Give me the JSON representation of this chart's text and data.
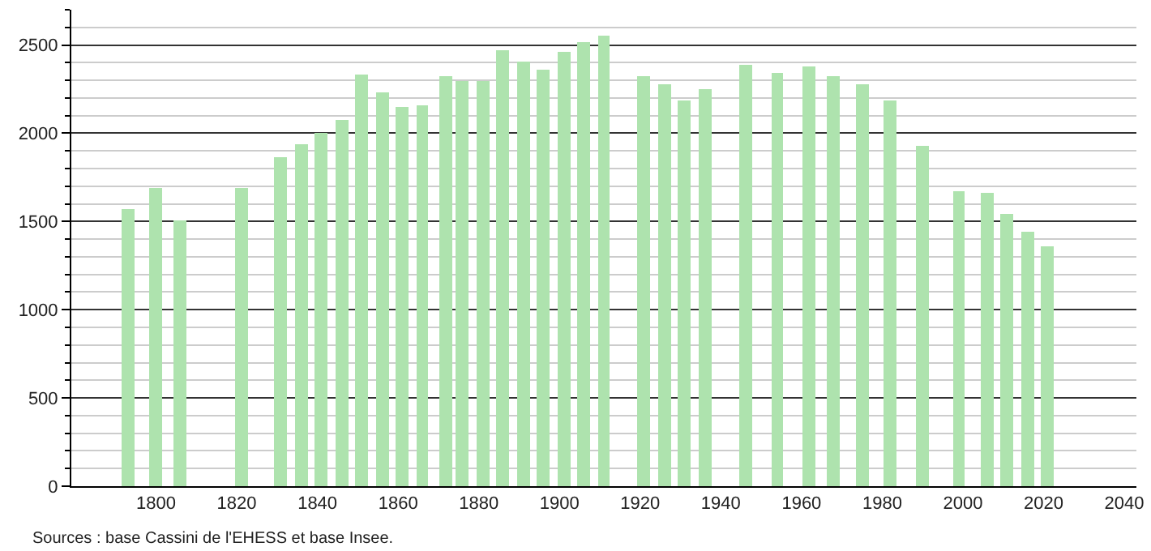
{
  "chart_data": {
    "type": "bar",
    "x": [
      1793,
      1800,
      1806,
      1821,
      1831,
      1836,
      1841,
      1846,
      1851,
      1856,
      1861,
      1866,
      1872,
      1876,
      1881,
      1886,
      1891,
      1896,
      1901,
      1906,
      1911,
      1921,
      1926,
      1931,
      1936,
      1946,
      1954,
      1962,
      1968,
      1975,
      1982,
      1990,
      1999,
      2006,
      2011,
      2016,
      2021
    ],
    "values": [
      1570,
      1690,
      1510,
      1690,
      1860,
      1940,
      2000,
      2080,
      2330,
      2230,
      2150,
      2160,
      2320,
      2300,
      2300,
      2470,
      2410,
      2360,
      2460,
      2520,
      2550,
      2320,
      2280,
      2190,
      2250,
      2390,
      2340,
      2380,
      2320,
      2280,
      2190,
      1930,
      1670,
      1660,
      1540,
      1440,
      1360
    ],
    "color": "#aee3ae",
    "xlim": [
      1779,
      2043
    ],
    "xticks": [
      1800,
      1820,
      1840,
      1860,
      1880,
      1900,
      1920,
      1940,
      1960,
      1980,
      2000,
      2020,
      2040
    ],
    "ylim": [
      0,
      2700
    ],
    "yticks": [
      0,
      500,
      1000,
      1500,
      2000,
      2500
    ],
    "grid": "y",
    "annotations": [
      "Sources : base Cassini de l'EHESS et base Insee."
    ]
  }
}
